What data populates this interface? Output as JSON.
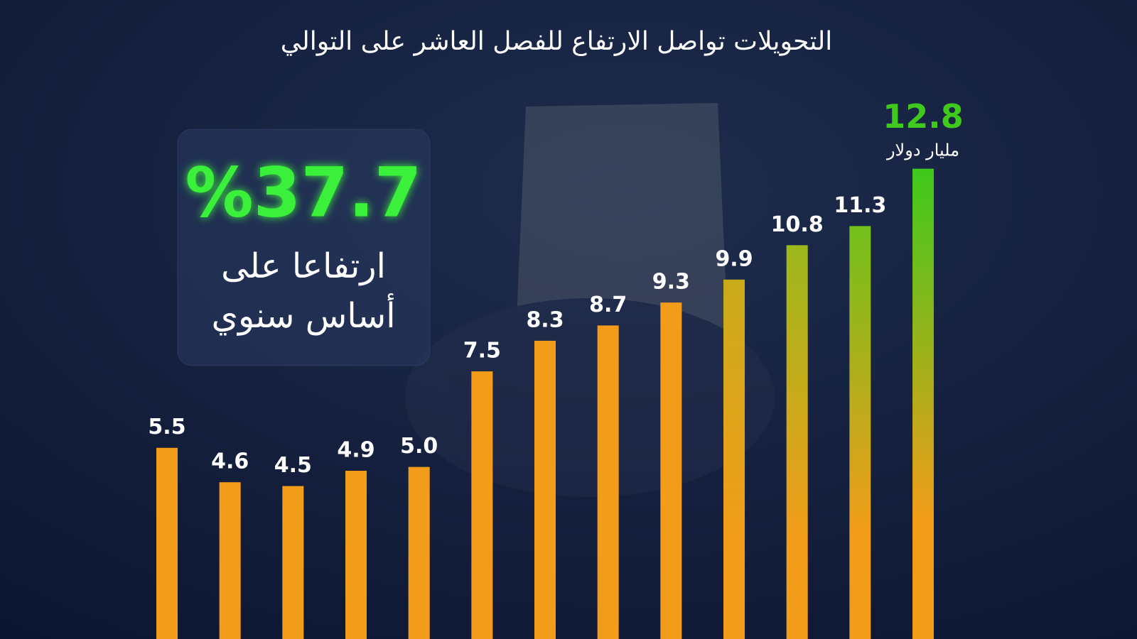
{
  "chart_data": {
    "type": "bar",
    "title": "التحويلات تواصل الارتفاع للفصل العاشر على التوالي",
    "unit": "مليار دولار",
    "annotation": {
      "highlight": "%37.7",
      "lines": [
        "ارتفاعا على",
        "أساس سنوي"
      ]
    },
    "categories": [
      null,
      null,
      null,
      null,
      null,
      null,
      null,
      null,
      null,
      null,
      null,
      null,
      null
    ],
    "values": [
      5.5,
      4.6,
      4.5,
      4.9,
      5.0,
      7.5,
      8.3,
      8.7,
      9.3,
      9.9,
      10.8,
      11.3,
      12.8
    ],
    "value_labels": [
      "5.5",
      "4.6",
      "4.5",
      "4.9",
      "5.0",
      "7.5",
      "8.3",
      "8.7",
      "9.3",
      "9.9",
      "10.8",
      "11.3",
      "12.8"
    ],
    "color": "#f39c1a",
    "colors": [
      "#f39c1a",
      "#f39c1a",
      "#f39c1a",
      "#f39c1a",
      "#f39c1a",
      "#f39c1a",
      "#f39c1a",
      "#f39c1a",
      "#f39c1a",
      "#c9ab1a",
      "#9cb81b",
      "#72c01c",
      "#3ec91c"
    ],
    "ylim": [
      0.5,
      14
    ]
  }
}
